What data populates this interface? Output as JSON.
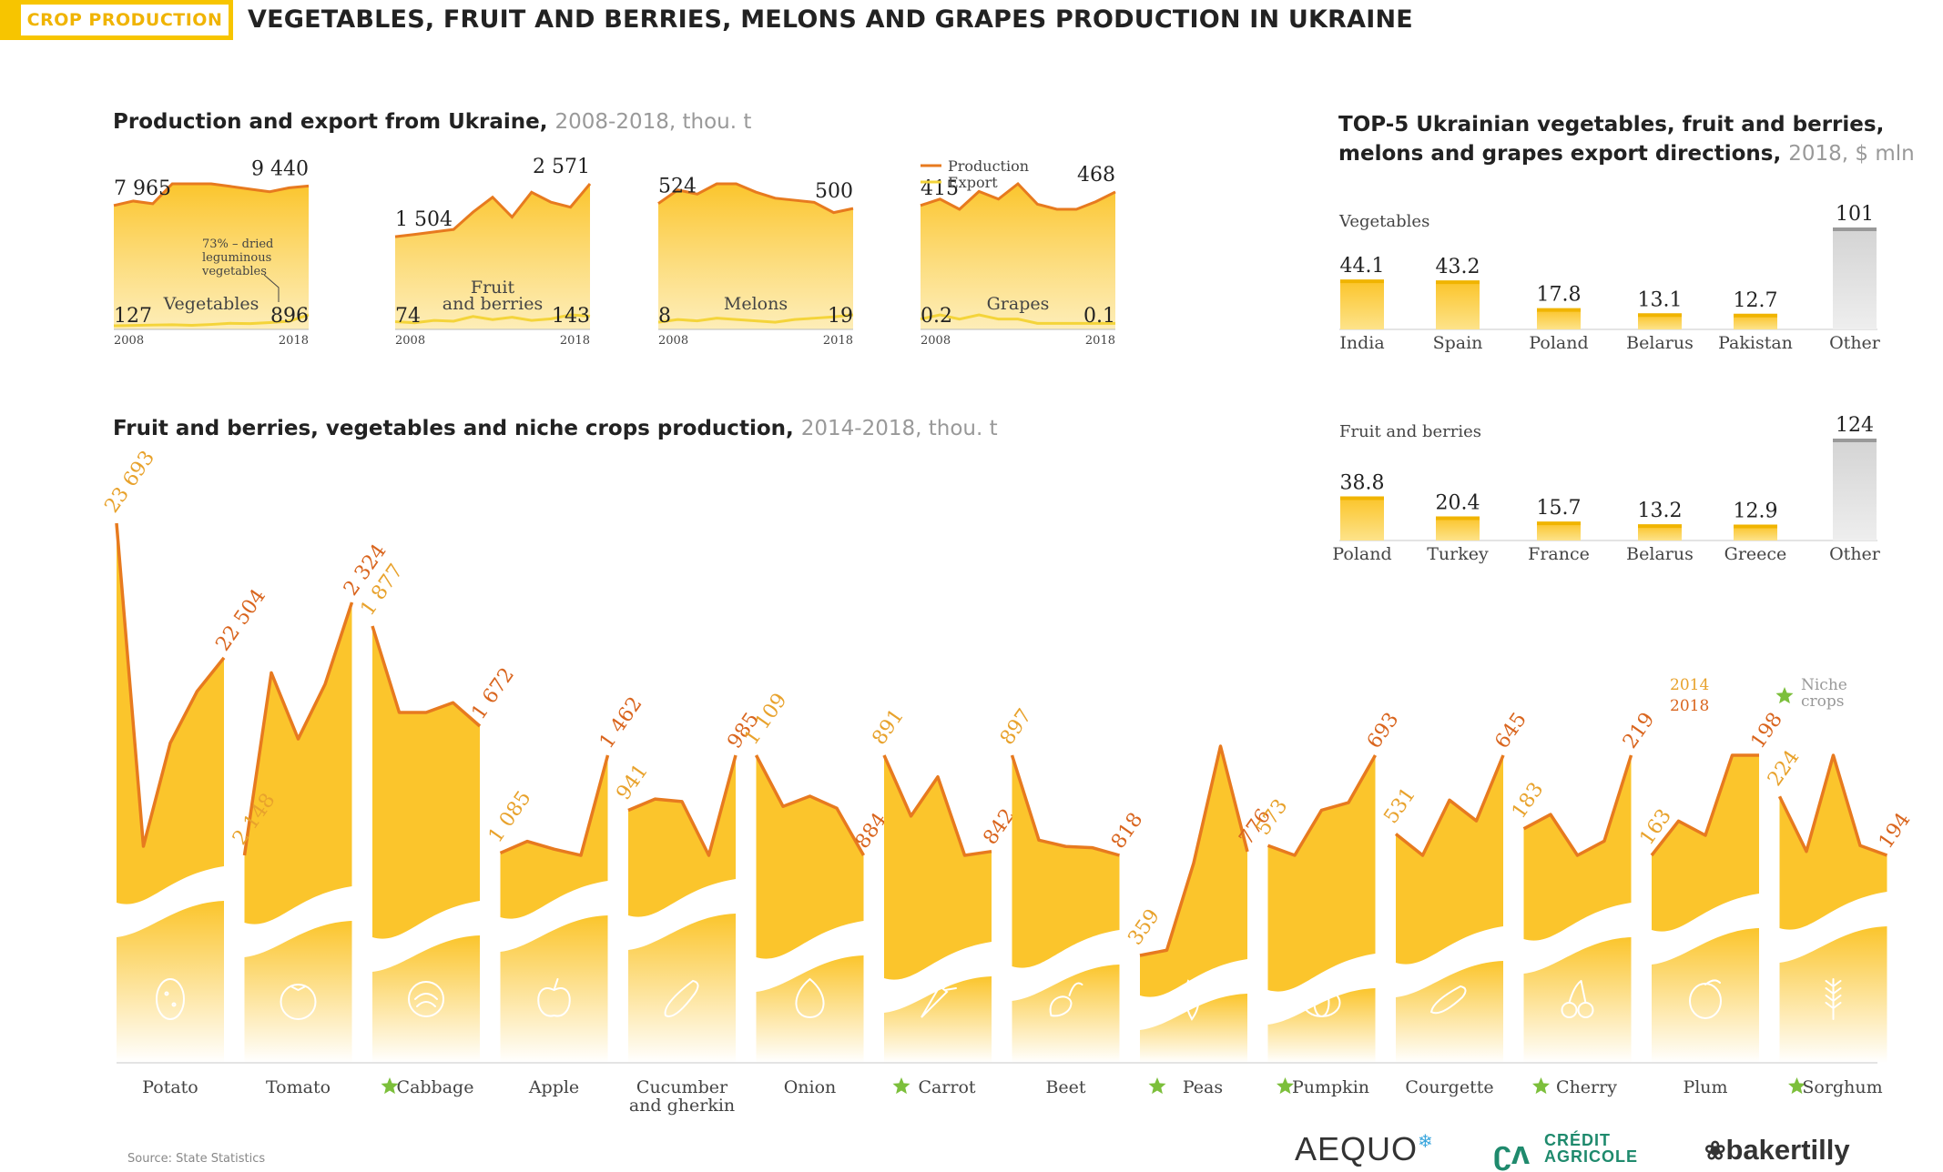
{
  "header": {
    "tag": "CROP PRODUCTION",
    "title": "VEGETABLES, FRUIT AND BERRIES, MELONS AND GRAPES PRODUCTION IN UKRAINE"
  },
  "section_production_export": {
    "title": "Production and export from Ukraine,",
    "subtitle": "2008-2018, thou. t",
    "legend": [
      "Production",
      "Export"
    ],
    "note": [
      "73% – dried",
      "leguminous",
      "vegetables"
    ]
  },
  "section_top5": {
    "title_line1": "TOP-5 Ukrainian vegetables, fruit and berries,",
    "title_line2": "melons and grapes export directions,",
    "subtitle": "2018, $ mln"
  },
  "section_crops": {
    "title": "Fruit and berries, vegetables and niche crops production,",
    "subtitle": "2014-2018, thou. t",
    "legend_years": [
      "2014",
      "2018"
    ],
    "legend_niche": [
      "Niche",
      "crops"
    ]
  },
  "footer": {
    "source": "Source: State Statistics",
    "logos": [
      "AEQUO",
      "CRÉDIT",
      "AGRICOLE",
      "bakertilly"
    ]
  },
  "colors": {
    "accent_yellow": "#f7c500",
    "area_yellow": "#fbc52c",
    "production_orange": "#e77a1f",
    "export_yellow": "#f4d43a",
    "label_2014": "#e8a22c",
    "label_2018": "#d9651e",
    "niche_star": "#7cbf3b",
    "other_gray": "#d9d9d9"
  },
  "chart_data": [
    {
      "type": "area",
      "name": "Vegetables",
      "x": [
        2008,
        2009,
        2010,
        2011,
        2012,
        2013,
        2014,
        2015,
        2016,
        2017,
        2018
      ],
      "series": [
        {
          "name": "Production",
          "values": [
            7965,
            8300,
            8100,
            9600,
            9600,
            9600,
            9400,
            9200,
            9000,
            9300,
            9440
          ]
        },
        {
          "name": "Export",
          "values": [
            127,
            150,
            180,
            200,
            160,
            220,
            300,
            280,
            350,
            450,
            896
          ]
        }
      ],
      "start_labels": {
        "production": "7 965",
        "export": "127"
      },
      "end_labels": {
        "production": "9 440",
        "export": "896"
      },
      "x_labels": [
        "2008",
        "2018"
      ],
      "inner_label": [
        "Vegetables"
      ]
    },
    {
      "type": "area",
      "name": "Fruit and berries",
      "x": [
        2008,
        2009,
        2010,
        2011,
        2012,
        2013,
        2014,
        2015,
        2016,
        2017,
        2018
      ],
      "series": [
        {
          "name": "Production",
          "values": [
            1504,
            1550,
            1600,
            1650,
            2000,
            2300,
            1900,
            2400,
            2200,
            2100,
            2571
          ]
        },
        {
          "name": "Export",
          "values": [
            74,
            60,
            90,
            80,
            140,
            100,
            130,
            90,
            110,
            160,
            143
          ]
        }
      ],
      "start_labels": {
        "production": "1 504",
        "export": "74"
      },
      "end_labels": {
        "production": "2 571",
        "export": "143"
      },
      "x_labels": [
        "2008",
        "2018"
      ],
      "inner_label": [
        "Fruit",
        "and berries"
      ]
    },
    {
      "type": "area",
      "name": "Melons",
      "x": [
        2008,
        2009,
        2010,
        2011,
        2012,
        2013,
        2014,
        2015,
        2016,
        2017,
        2018
      ],
      "series": [
        {
          "name": "Production",
          "values": [
            524,
            590,
            570,
            620,
            620,
            580,
            550,
            540,
            530,
            480,
            500
          ]
        },
        {
          "name": "Export",
          "values": [
            8,
            12,
            10,
            14,
            12,
            10,
            8,
            12,
            14,
            16,
            19
          ]
        }
      ],
      "start_labels": {
        "production": "524",
        "export": "8"
      },
      "end_labels": {
        "production": "500",
        "export": "19"
      },
      "x_labels": [
        "2008",
        "2018"
      ],
      "inner_label": [
        "Melons"
      ]
    },
    {
      "type": "area",
      "name": "Grapes",
      "x": [
        2008,
        2009,
        2010,
        2011,
        2012,
        2013,
        2014,
        2015,
        2016,
        2017,
        2018
      ],
      "series": [
        {
          "name": "Production",
          "values": [
            415,
            440,
            400,
            470,
            440,
            500,
            420,
            400,
            400,
            430,
            468
          ]
        },
        {
          "name": "Export",
          "values": [
            0.2,
            0.3,
            0.2,
            0.3,
            0.2,
            0.2,
            0.1,
            0.1,
            0.1,
            0.1,
            0.1
          ]
        }
      ],
      "start_labels": {
        "production": "415",
        "export": "0.2"
      },
      "end_labels": {
        "production": "468",
        "export": "0.1"
      },
      "x_labels": [
        "2008",
        "2018"
      ],
      "inner_label": [
        "Grapes"
      ]
    },
    {
      "type": "bar",
      "name": "Vegetables",
      "categories": [
        "India",
        "Spain",
        "Poland",
        "Belarus",
        "Pakistan",
        "Other"
      ],
      "values": [
        44.1,
        43.2,
        17.8,
        13.1,
        12.7,
        101
      ],
      "labels": [
        "44.1",
        "43.2",
        "17.8",
        "13.1",
        "12.7",
        "101"
      ],
      "group_label": "Vegetables"
    },
    {
      "type": "bar",
      "name": "Fruit and berries",
      "categories": [
        "Poland",
        "Turkey",
        "France",
        "Belarus",
        "Greece",
        "Other"
      ],
      "values": [
        38.8,
        20.4,
        15.7,
        13.2,
        12.9,
        124
      ],
      "labels": [
        "38.8",
        "20.4",
        "15.7",
        "13.2",
        "12.9",
        "124"
      ],
      "group_label": "Fruit and berries"
    },
    {
      "type": "area",
      "name": "Crops production 2014-2018",
      "x": [
        2014,
        2015,
        2016,
        2017,
        2018
      ],
      "crops": [
        {
          "name": "Potato",
          "lines": [
            "Potato"
          ],
          "niche": false,
          "icon": "potato-icon",
          "label_2014": "23 693",
          "label_2018": "22 504",
          "values": [
            23693,
            20839,
            21751,
            22208,
            22504
          ]
        },
        {
          "name": "Tomato",
          "lines": [
            "Tomato"
          ],
          "niche": false,
          "icon": "tomato-icon",
          "label_2014": "2 148",
          "label_2018": "2 324",
          "values": [
            2148,
            2275,
            2229,
            2267,
            2324
          ]
        },
        {
          "name": "Cabbage",
          "lines": [
            "Cabbage"
          ],
          "niche": true,
          "icon": "cabbage-icon",
          "label_2014": "1 877",
          "label_2018": "1 672",
          "values": [
            1877,
            1700,
            1700,
            1720,
            1672
          ]
        },
        {
          "name": "Apple",
          "lines": [
            "Apple"
          ],
          "niche": false,
          "icon": "apple-icon",
          "label_2014": "1 085",
          "label_2018": "1 462",
          "values": [
            1085,
            1130,
            1100,
            1076,
            1462
          ]
        },
        {
          "name": "Cucumber and gherkin",
          "lines": [
            "Cucumber",
            "and gherkin"
          ],
          "niche": false,
          "icon": "cucumber-icon",
          "label_2014": "941",
          "label_2018": "985",
          "values": [
            941,
            950,
            948,
            905,
            985
          ]
        },
        {
          "name": "Onion",
          "lines": [
            "Onion"
          ],
          "niche": false,
          "icon": "onion-icon",
          "label_2014": "1 109",
          "label_2018": "884",
          "values": [
            1109,
            994,
            1017,
            990,
            884
          ]
        },
        {
          "name": "Carrot",
          "lines": [
            "Carrot"
          ],
          "niche": true,
          "icon": "carrot-icon",
          "label_2014": "891",
          "label_2018": "842",
          "values": [
            891,
            860,
            880,
            840,
            842
          ]
        },
        {
          "name": "Beet",
          "lines": [
            "Beet"
          ],
          "niche": false,
          "icon": "beet-icon",
          "label_2014": "897",
          "label_2018": "818",
          "values": [
            897,
            830,
            825,
            824,
            818
          ]
        },
        {
          "name": "Peas",
          "lines": [
            "Peas"
          ],
          "niche": true,
          "icon": "peas-icon",
          "label_2014": "359",
          "label_2018": "776",
          "values": [
            359,
            380,
            730,
            1200,
            776
          ]
        },
        {
          "name": "Pumpkin",
          "lines": [
            "Pumpkin"
          ],
          "niche": true,
          "icon": "pumpkin-icon",
          "label_2014": "573",
          "label_2018": "693",
          "values": [
            573,
            560,
            620,
            630,
            693
          ]
        },
        {
          "name": "Courgette",
          "lines": [
            "Courgette"
          ],
          "niche": false,
          "icon": "courgette-icon",
          "label_2014": "531",
          "label_2018": "645",
          "values": [
            531,
            500,
            580,
            550,
            645
          ]
        },
        {
          "name": "Cherry",
          "lines": [
            "Cherry"
          ],
          "niche": true,
          "icon": "cherry-icon",
          "label_2014": "183",
          "label_2018": "219",
          "values": [
            183,
            190,
            170,
            177,
            219
          ]
        },
        {
          "name": "Plum",
          "lines": [
            "Plum"
          ],
          "niche": false,
          "icon": "plum-icon",
          "label_2014": "163",
          "label_2018": "198",
          "values": [
            163,
            175,
            170,
            198,
            198
          ]
        },
        {
          "name": "Sorghum",
          "lines": [
            "Sorghum"
          ],
          "niche": true,
          "icon": "sorghum-icon",
          "label_2014": "224",
          "label_2018": "194",
          "values": [
            224,
            196,
            245,
            199,
            194
          ]
        }
      ]
    }
  ]
}
